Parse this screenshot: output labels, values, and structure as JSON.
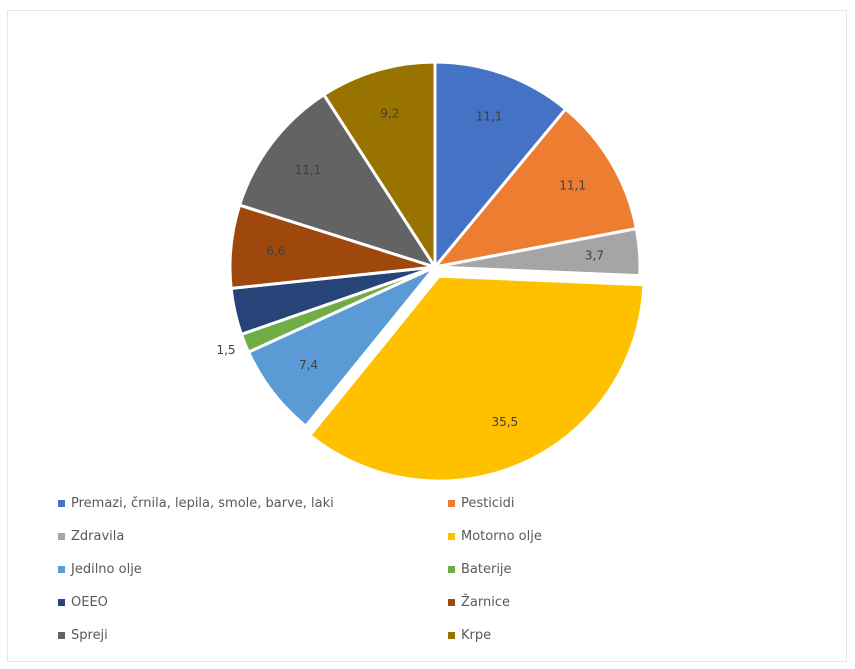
{
  "chart_data": {
    "type": "pie",
    "title": "",
    "slices": [
      {
        "label": "Premazi, črnila, lepila, smole, barve, laki",
        "value": 11.1,
        "value_label": "11,1",
        "color": "#4472C4"
      },
      {
        "label": "Pesticidi",
        "value": 11.1,
        "value_label": "11,1",
        "color": "#ED7D31"
      },
      {
        "label": "Zdravila",
        "value": 3.7,
        "value_label": "3,7",
        "color": "#A5A5A5"
      },
      {
        "label": "Motorno olje",
        "value": 35.5,
        "value_label": "35,5",
        "color": "#FFC000"
      },
      {
        "label": "Jedilno olje",
        "value": 7.4,
        "value_label": "7,4",
        "color": "#5B9BD5"
      },
      {
        "label": "Baterije",
        "value": 1.5,
        "value_label": "1,5",
        "color": "#70AD47"
      },
      {
        "label": "OEEO",
        "value": 3.7,
        "value_label": "",
        "color": "#264478"
      },
      {
        "label": "Žarnice",
        "value": 6.6,
        "value_label": "6,6",
        "color": "#9E480E"
      },
      {
        "label": "Spreji",
        "value": 11.1,
        "value_label": "11,1",
        "color": "#636363"
      },
      {
        "label": "Krpe",
        "value": 9.2,
        "value_label": "9,2",
        "color": "#997300"
      }
    ],
    "legend_position": "bottom",
    "start_angle_deg": 0,
    "exploded_slice": "Motorno olje"
  }
}
